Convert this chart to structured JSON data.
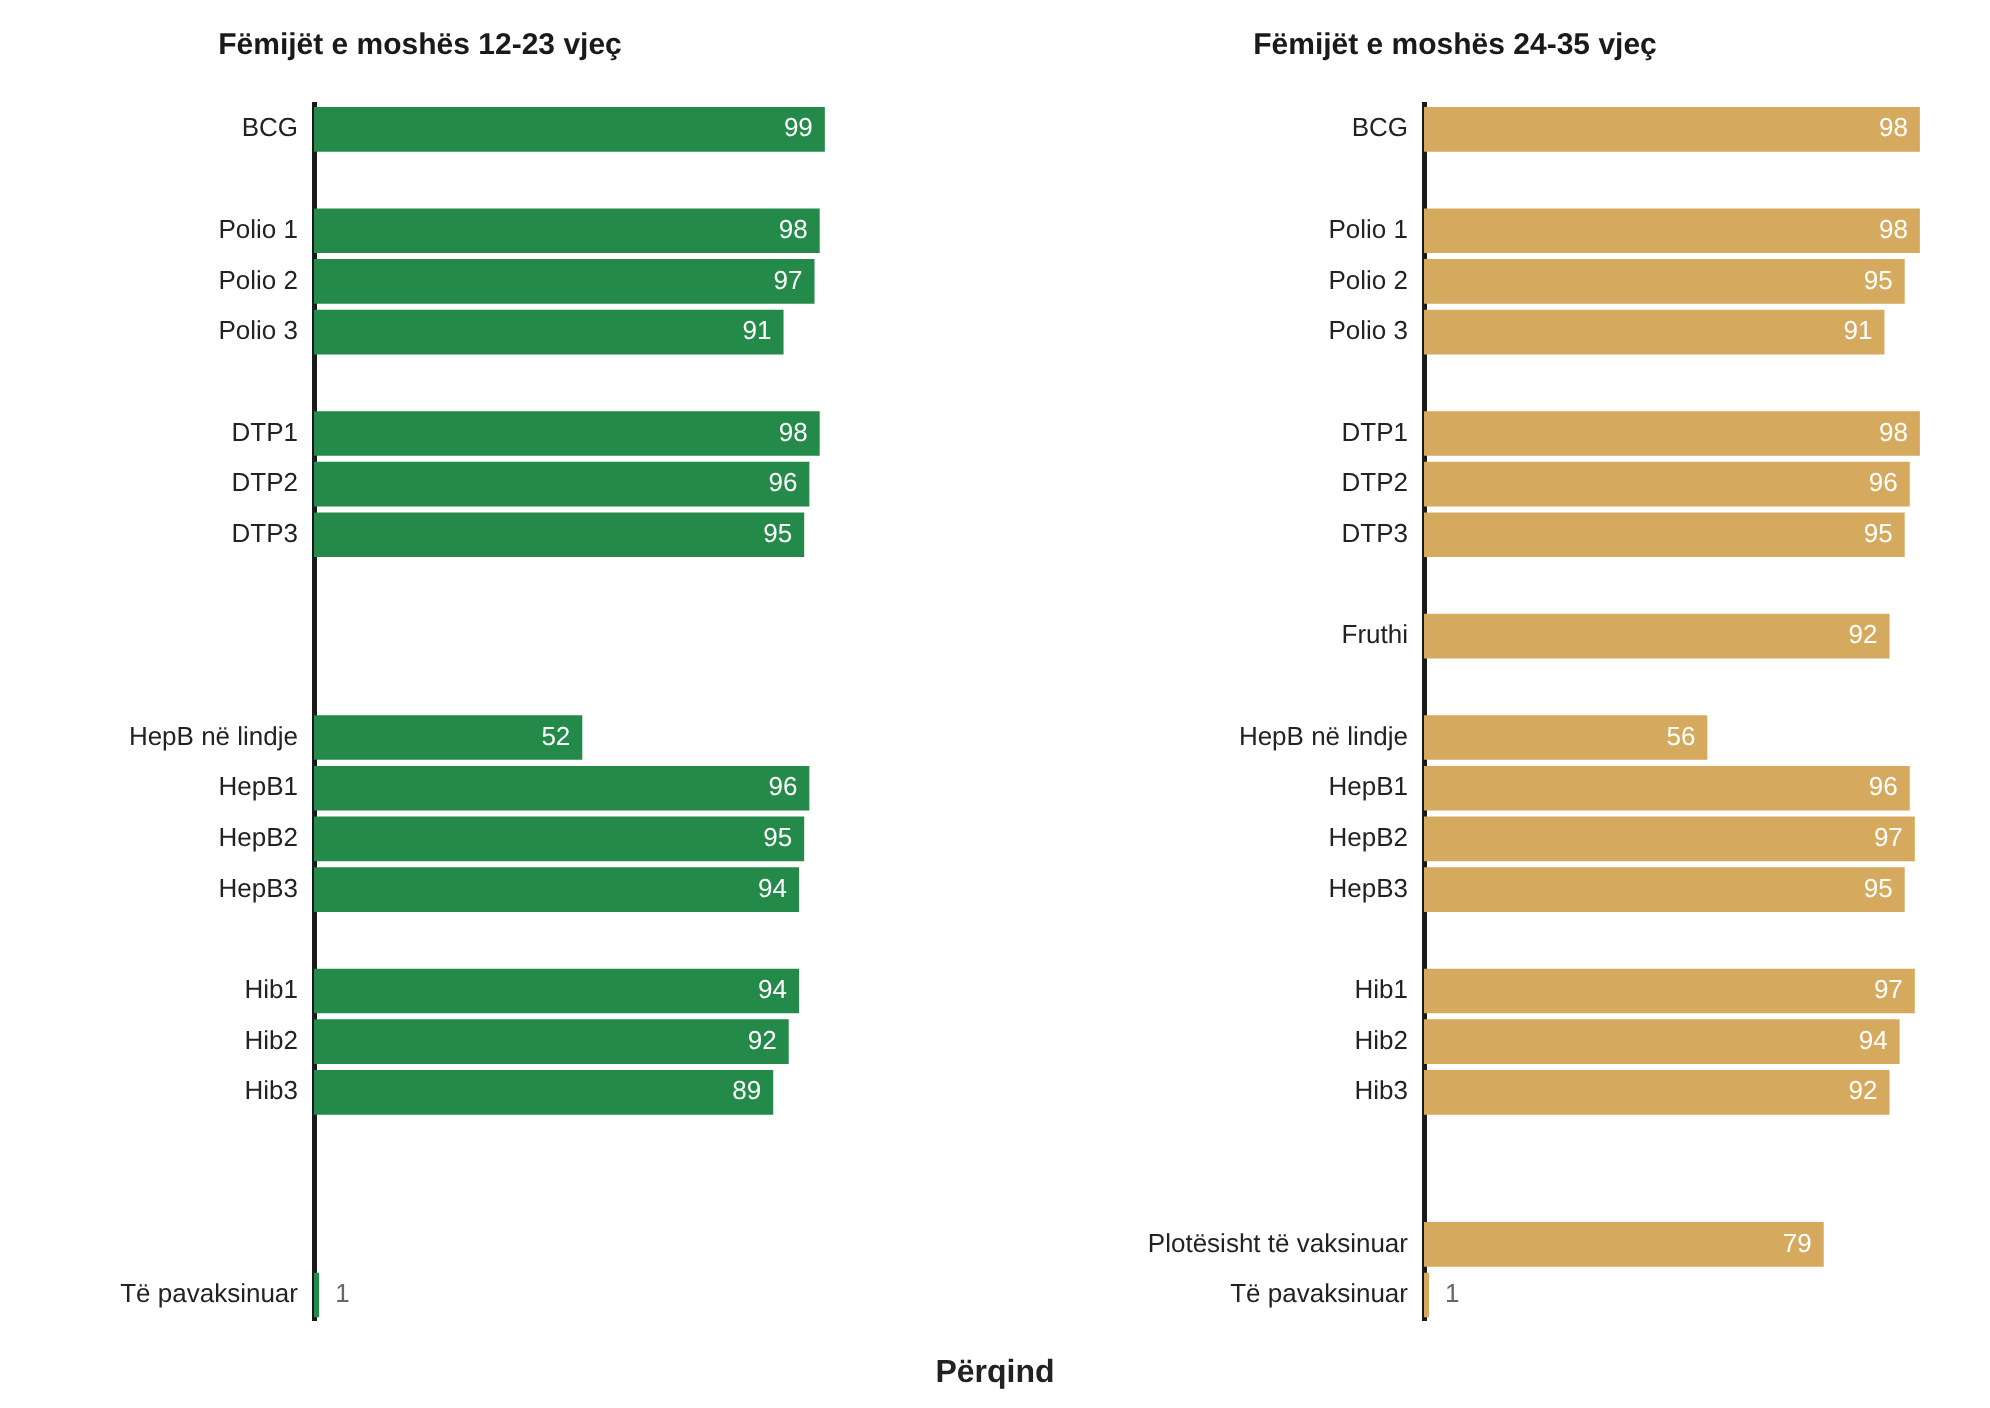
{
  "chart_data": [
    {
      "type": "bar",
      "orientation": "horizontal",
      "title": "Fëmijët e moshës 12-23 vjeç",
      "xlabel": "Përqind",
      "categories": [
        "BCG",
        null,
        "Polio 1",
        "Polio 2",
        "Polio 3",
        null,
        "DTP1",
        "DTP2",
        "DTP3",
        null,
        null,
        null,
        "HepB në lindje",
        "HepB1",
        "HepB2",
        "HepB3",
        null,
        "Hib1",
        "Hib2",
        "Hib3",
        null,
        null,
        null,
        "Të pavaksinuar"
      ],
      "values": [
        99,
        null,
        98,
        97,
        91,
        null,
        98,
        96,
        95,
        null,
        null,
        null,
        52,
        96,
        95,
        94,
        null,
        94,
        92,
        89,
        null,
        null,
        null,
        1
      ],
      "color": "#248a4a",
      "tick_labels": "y",
      "data_labels": true
    },
    {
      "type": "bar",
      "orientation": "horizontal",
      "title": "Fëmijët e moshës 24-35 vjeç",
      "categories": [
        "BCG",
        null,
        "Polio 1",
        "Polio 2",
        "Polio 3",
        null,
        "DTP1",
        "DTP2",
        "DTP3",
        null,
        "Fruthi",
        null,
        "HepB në lindje",
        "HepB1",
        "HepB2",
        "HepB3",
        null,
        "Hib1",
        "Hib2",
        "Hib3",
        null,
        null,
        "Plotësisht të vaksinuar",
        "Të pavaksinuar"
      ],
      "values": [
        98,
        null,
        98,
        95,
        91,
        null,
        98,
        96,
        95,
        null,
        92,
        null,
        56,
        96,
        97,
        95,
        null,
        97,
        94,
        92,
        null,
        null,
        79,
        1
      ],
      "color": "#d6aa5e",
      "tick_labels": "y",
      "data_labels": true
    }
  ]
}
